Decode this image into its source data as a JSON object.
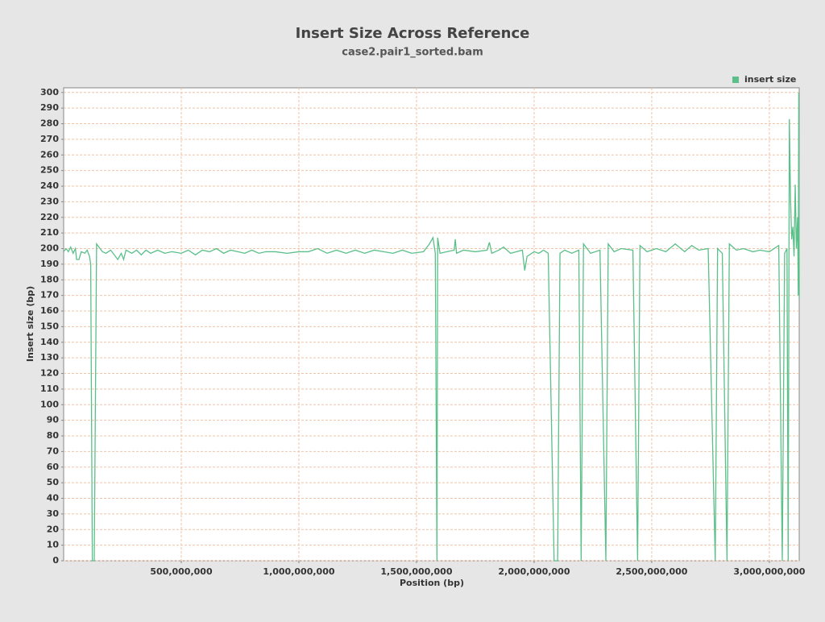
{
  "chart_data": {
    "type": "line",
    "title": "Insert Size Across Reference",
    "subtitle": "case2.pair1_sorted.bam",
    "x_label": "Position (bp)",
    "y_label": "Insert size (bp)",
    "legend": "top-right",
    "grid": true,
    "xlim": [
      0,
      3127000000
    ],
    "ylim": [
      0,
      303
    ],
    "xticks": [
      {
        "value": 500000000,
        "label": "500,000,000"
      },
      {
        "value": 1000000000,
        "label": "1,000,000,000"
      },
      {
        "value": 1500000000,
        "label": "1,500,000,000"
      },
      {
        "value": 2000000000,
        "label": "2,000,000,000"
      },
      {
        "value": 2500000000,
        "label": "2,500,000,000"
      },
      {
        "value": 3000000000,
        "label": "3,000,000,000"
      }
    ],
    "yticks": [
      0,
      10,
      20,
      30,
      40,
      50,
      60,
      70,
      80,
      90,
      100,
      110,
      120,
      130,
      140,
      150,
      160,
      170,
      180,
      190,
      200,
      210,
      220,
      230,
      240,
      250,
      260,
      270,
      280,
      290,
      300
    ],
    "x": [
      0,
      10000000,
      20000000,
      30000000,
      40000000,
      50000000,
      55000000,
      65000000,
      75000000,
      90000000,
      100000000,
      110000000,
      115000000,
      122000000,
      130000000,
      140000000,
      150000000,
      165000000,
      180000000,
      200000000,
      215000000,
      230000000,
      245000000,
      255000000,
      265000000,
      290000000,
      310000000,
      330000000,
      350000000,
      370000000,
      400000000,
      430000000,
      460000000,
      500000000,
      530000000,
      560000000,
      590000000,
      620000000,
      650000000,
      680000000,
      710000000,
      740000000,
      770000000,
      800000000,
      830000000,
      860000000,
      900000000,
      950000000,
      1000000000,
      1040000000,
      1080000000,
      1120000000,
      1160000000,
      1200000000,
      1240000000,
      1280000000,
      1320000000,
      1360000000,
      1400000000,
      1440000000,
      1480000000,
      1530000000,
      1555000000,
      1570000000,
      1580000000,
      1587000000,
      1590000000,
      1600000000,
      1630000000,
      1660000000,
      1665000000,
      1670000000,
      1700000000,
      1750000000,
      1800000000,
      1810000000,
      1820000000,
      1850000000,
      1870000000,
      1900000000,
      1950000000,
      1960000000,
      1970000000,
      2000000000,
      2020000000,
      2040000000,
      2060000000,
      2085000000,
      2100000000,
      2110000000,
      2130000000,
      2160000000,
      2190000000,
      2200000000,
      2210000000,
      2240000000,
      2280000000,
      2305000000,
      2315000000,
      2340000000,
      2370000000,
      2420000000,
      2440000000,
      2450000000,
      2480000000,
      2520000000,
      2560000000,
      2600000000,
      2640000000,
      2670000000,
      2700000000,
      2740000000,
      2770000000,
      2780000000,
      2800000000,
      2820000000,
      2830000000,
      2860000000,
      2890000000,
      2930000000,
      2960000000,
      3000000000,
      3040000000,
      3055000000,
      3065000000,
      3075000000,
      3080000000,
      3085000000,
      3090000000,
      3095000000,
      3100000000,
      3105000000,
      3110000000,
      3115000000,
      3120000000,
      3123000000,
      3125000000,
      3127000000
    ],
    "series": [
      {
        "name": "insert size",
        "color": "#5bbf8a",
        "values": [
          198,
          200,
          198,
          201,
          197,
          200,
          193,
          193,
          198,
          197,
          199,
          195,
          190,
          0,
          0,
          203,
          201,
          198,
          197,
          199,
          196,
          193,
          197,
          193,
          199,
          197,
          199,
          196,
          199,
          197,
          199,
          197,
          198,
          197,
          199,
          196,
          199,
          198,
          200,
          197,
          199,
          198,
          197,
          199,
          197,
          198,
          198,
          197,
          198,
          198,
          200,
          197,
          199,
          197,
          199,
          197,
          199,
          198,
          197,
          199,
          197,
          198,
          203,
          207,
          197,
          0,
          207,
          197,
          198,
          199,
          206,
          197,
          199,
          198,
          199,
          204,
          197,
          199,
          201,
          197,
          199,
          186,
          195,
          198,
          197,
          199,
          197,
          0,
          0,
          197,
          199,
          197,
          199,
          0,
          203,
          197,
          199,
          0,
          203,
          198,
          200,
          199,
          0,
          202,
          198,
          200,
          198,
          203,
          198,
          202,
          199,
          200,
          0,
          200,
          197,
          0,
          203,
          199,
          200,
          198,
          199,
          198,
          202,
          0,
          197,
          200,
          0,
          283,
          232,
          206,
          214,
          195,
          241,
          200,
          220,
          170,
          300,
          168
        ]
      }
    ]
  }
}
